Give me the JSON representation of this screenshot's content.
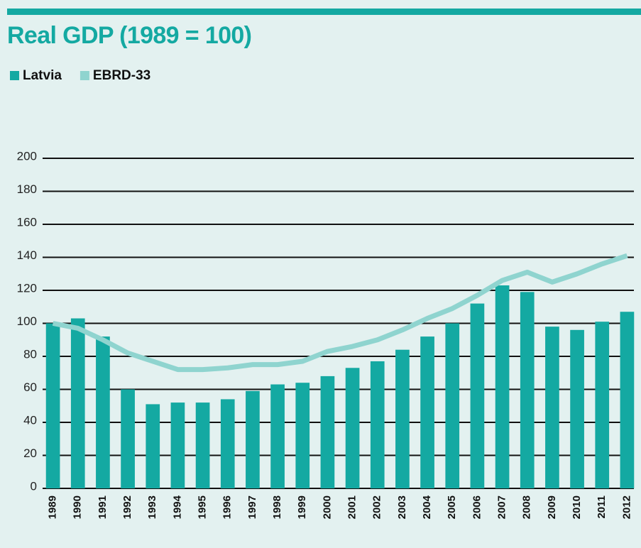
{
  "chart_data": {
    "type": "bar",
    "title": "Real GDP (1989 = 100)",
    "categories": [
      "1989",
      "1990",
      "1991",
      "1992",
      "1993",
      "1994",
      "1995",
      "1996",
      "1997",
      "1998",
      "1999",
      "2000",
      "2001",
      "2002",
      "2003",
      "2004",
      "2005",
      "2006",
      "2007",
      "2008",
      "2009",
      "2010",
      "2011",
      "2012"
    ],
    "series": [
      {
        "name": "Latvia",
        "color": "#14a9a2",
        "values": [
          100,
          103,
          92,
          60,
          51,
          52,
          52,
          54,
          59,
          63,
          64,
          68,
          73,
          77,
          84,
          92,
          100,
          112,
          123,
          119,
          98,
          96,
          101,
          107
        ]
      },
      {
        "name": "EBRD-33",
        "color": "#8fd4cf",
        "type": "line",
        "values": [
          100,
          97,
          90,
          82,
          77,
          72,
          72,
          73,
          75,
          75,
          77,
          83,
          86,
          90,
          96,
          103,
          109,
          117,
          126,
          131,
          125,
          130,
          136,
          141
        ]
      }
    ],
    "ylim": [
      0,
      200
    ],
    "yticks": [
      0,
      20,
      40,
      60,
      80,
      100,
      120,
      140,
      160,
      180,
      200
    ],
    "grid": true
  }
}
